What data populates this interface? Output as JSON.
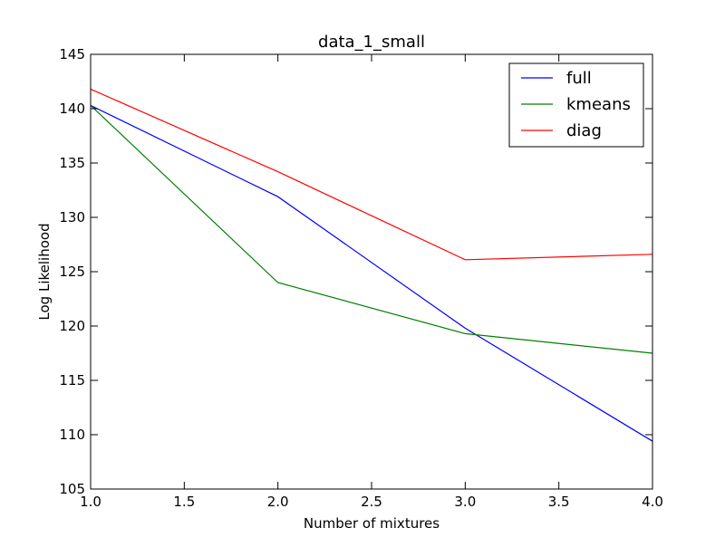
{
  "chart_data": {
    "type": "line",
    "title": "data_1_small",
    "xlabel": "Number of mixtures",
    "ylabel": "Log Likelihood",
    "xlim": [
      1.0,
      4.0
    ],
    "ylim": [
      105,
      145
    ],
    "x": [
      1.0,
      2.0,
      3.0,
      4.0
    ],
    "x_ticks": [
      1.0,
      1.5,
      2.0,
      2.5,
      3.0,
      3.5,
      4.0
    ],
    "x_tick_labels": [
      "1.0",
      "1.5",
      "2.0",
      "2.5",
      "3.0",
      "3.5",
      "4.0"
    ],
    "y_ticks": [
      105,
      110,
      115,
      120,
      125,
      130,
      135,
      140,
      145
    ],
    "y_tick_labels": [
      "105",
      "110",
      "115",
      "120",
      "125",
      "130",
      "135",
      "140",
      "145"
    ],
    "grid": false,
    "legend_position": "top-right",
    "series": [
      {
        "name": "full",
        "color": "#0000ff",
        "values": [
          140.3,
          131.9,
          119.8,
          109.4
        ]
      },
      {
        "name": "kmeans",
        "color": "#008000",
        "values": [
          140.3,
          124.0,
          119.3,
          117.5
        ]
      },
      {
        "name": "diag",
        "color": "#ff0000",
        "values": [
          141.8,
          134.2,
          126.1,
          126.6
        ]
      }
    ]
  }
}
